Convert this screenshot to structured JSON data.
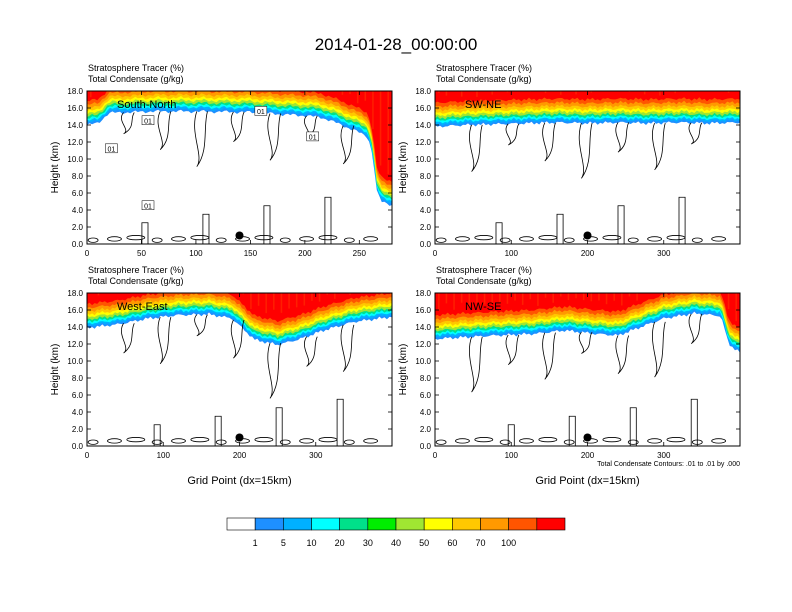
{
  "title": "2014-01-28_00:00:00",
  "chart_data": [
    {
      "type": "heatmap",
      "panel_label": "South-North",
      "title_line1": "Stratosphere Tracer   (%)",
      "title_line2": "Total Condensate   (g/kg)",
      "ylabel": "Height (km)",
      "xlabel": "",
      "xlim": [
        0,
        280
      ],
      "ylim": [
        0,
        18
      ],
      "xticks": [
        0,
        50,
        100,
        150,
        200,
        250
      ],
      "yticks": [
        "0.0",
        "2.0",
        "4.0",
        "6.0",
        "8.0",
        "10.0",
        "12.0",
        "14.0",
        "16.0",
        "18.0"
      ],
      "marker_x": 140,
      "contour_labels": [
        "01",
        "01",
        "01",
        "01",
        "01"
      ],
      "tracer_lower_edge_km": [
        [
          0,
          14.0
        ],
        [
          10,
          14.2
        ],
        [
          20,
          15.4
        ],
        [
          40,
          15.5
        ],
        [
          60,
          15.6
        ],
        [
          100,
          15.6
        ],
        [
          150,
          15.5
        ],
        [
          185,
          15.2
        ],
        [
          200,
          15.1
        ],
        [
          215,
          14.9
        ],
        [
          230,
          14.2
        ],
        [
          245,
          13.4
        ],
        [
          258,
          12.6
        ],
        [
          263,
          10
        ],
        [
          265,
          6.5
        ],
        [
          270,
          5.0
        ],
        [
          280,
          4.6
        ]
      ]
    },
    {
      "type": "heatmap",
      "panel_label": "SW-NE",
      "title_line1": "Stratosphere Tracer   (%)",
      "title_line2": "Total Condensate   (g/kg)",
      "ylabel": "Height (km)",
      "xlabel": "",
      "xlim": [
        0,
        400
      ],
      "ylim": [
        0,
        18
      ],
      "xticks": [
        0,
        100,
        200,
        300
      ],
      "yticks": [
        "0.0",
        "2.0",
        "4.0",
        "6.0",
        "8.0",
        "10.0",
        "12.0",
        "14.0",
        "16.0",
        "18.0"
      ],
      "marker_x": 200,
      "contour_labels": [],
      "tracer_lower_edge_km": [
        [
          0,
          13.8
        ],
        [
          40,
          14.0
        ],
        [
          80,
          14.1
        ],
        [
          120,
          14.2
        ],
        [
          160,
          14.3
        ],
        [
          200,
          14.2
        ],
        [
          240,
          14.3
        ],
        [
          280,
          14.2
        ],
        [
          320,
          14.3
        ],
        [
          360,
          14.2
        ],
        [
          400,
          14.3
        ]
      ]
    },
    {
      "type": "heatmap",
      "panel_label": "West-East",
      "title_line1": "Stratosphere Tracer   (%)",
      "title_line2": "Total Condensate   (g/kg)",
      "ylabel": "Height (km)",
      "xlabel": "Grid Point (dx=15km)",
      "xlim": [
        0,
        400
      ],
      "ylim": [
        0,
        18
      ],
      "xticks": [
        0,
        100,
        200,
        300
      ],
      "yticks": [
        "0.0",
        "2.0",
        "4.0",
        "6.0",
        "8.0",
        "10.0",
        "12.0",
        "14.0",
        "16.0",
        "18.0"
      ],
      "marker_x": 200,
      "contour_labels": [],
      "tracer_lower_edge_km": [
        [
          0,
          13.9
        ],
        [
          40,
          14.3
        ],
        [
          80,
          15.0
        ],
        [
          120,
          15.4
        ],
        [
          160,
          15.5
        ],
        [
          190,
          15.0
        ],
        [
          220,
          12.5
        ],
        [
          250,
          11.9
        ],
        [
          280,
          12.6
        ],
        [
          310,
          13.6
        ],
        [
          350,
          14.6
        ],
        [
          400,
          15.2
        ]
      ]
    },
    {
      "type": "heatmap",
      "panel_label": "NW-SE",
      "title_line1": "Stratosphere Tracer   (%)",
      "title_line2": "Total Condensate   (g/kg)",
      "ylabel": "Height (km)",
      "xlabel": "Grid Point (dx=15km)",
      "xlim": [
        0,
        400
      ],
      "ylim": [
        0,
        18
      ],
      "xticks": [
        0,
        100,
        200,
        300
      ],
      "yticks": [
        "0.0",
        "2.0",
        "4.0",
        "6.0",
        "8.0",
        "10.0",
        "12.0",
        "14.0",
        "16.0",
        "18.0"
      ],
      "marker_x": 200,
      "contour_labels": [],
      "footnote": "Total Condensate Contours: .01 to .01 by .000",
      "tracer_lower_edge_km": [
        [
          0,
          12.6
        ],
        [
          40,
          12.8
        ],
        [
          80,
          13.0
        ],
        [
          130,
          13.2
        ],
        [
          170,
          13.6
        ],
        [
          210,
          13.2
        ],
        [
          240,
          13.0
        ],
        [
          270,
          14.0
        ],
        [
          300,
          15.0
        ],
        [
          340,
          15.6
        ],
        [
          375,
          15.3
        ],
        [
          385,
          12.0
        ],
        [
          400,
          11.0
        ]
      ]
    }
  ],
  "colorbar": {
    "labels": [
      "1",
      "5",
      "10",
      "20",
      "30",
      "40",
      "50",
      "60",
      "70",
      "100"
    ],
    "colors": [
      "#ffffff",
      "#1e90ff",
      "#00b0ff",
      "#00ffff",
      "#00e08a",
      "#00ee00",
      "#a0e632",
      "#ffff00",
      "#ffc800",
      "#ff9900",
      "#ff5500",
      "#ff0000"
    ]
  }
}
